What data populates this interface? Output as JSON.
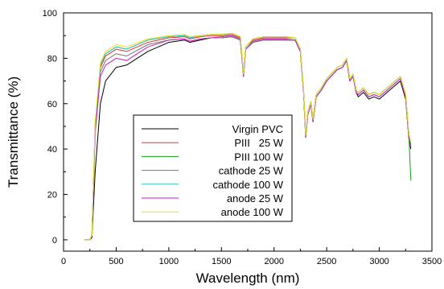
{
  "chart_data": {
    "type": "line",
    "title": "",
    "xlabel": "Wavelength (nm)",
    "ylabel": "Transmittance (%)",
    "xlim": [
      0,
      3500
    ],
    "ylim": [
      -5,
      100
    ],
    "xticks": [
      0,
      500,
      1000,
      1500,
      2000,
      2500,
      3000,
      3500
    ],
    "yticks": [
      0,
      20,
      40,
      60,
      80,
      100
    ],
    "grid": false,
    "legend_position": "center-left",
    "series": [
      {
        "name": "Virgin PVC",
        "color": "#000000",
        "x": [
          200,
          250,
          270,
          300,
          350,
          400,
          500,
          600,
          800,
          1000,
          1150,
          1200,
          1300,
          1400,
          1500,
          1600,
          1680,
          1710,
          1730,
          1800,
          1900,
          2000,
          2100,
          2200,
          2250,
          2280,
          2300,
          2320,
          2350,
          2370,
          2400,
          2450,
          2500,
          2600,
          2650,
          2690,
          2720,
          2750,
          2780,
          2800,
          2850,
          2900,
          2950,
          3000,
          3050,
          3100,
          3150,
          3200,
          3250,
          3280,
          3300
        ],
        "y": [
          0,
          0,
          1,
          30,
          60,
          70,
          76,
          77,
          83,
          87,
          88,
          87,
          88,
          89,
          89,
          89.5,
          88,
          72,
          84,
          87,
          88,
          88,
          88,
          88,
          83,
          65,
          45,
          55,
          60,
          52,
          63,
          66,
          70,
          75,
          76,
          79,
          70,
          72,
          65,
          63,
          65,
          62,
          63,
          62,
          64,
          66,
          68,
          70,
          62,
          45,
          40
        ]
      },
      {
        "name": "PIII   25 W",
        "color": "#e8312a",
        "x": [
          200,
          250,
          270,
          300,
          350,
          400,
          500,
          600,
          800,
          1000,
          1150,
          1200,
          1300,
          1400,
          1500,
          1600,
          1680,
          1710,
          1730,
          1800,
          1900,
          2000,
          2100,
          2200,
          2250,
          2280,
          2300,
          2320,
          2350,
          2370,
          2400,
          2450,
          2500,
          2600,
          2650,
          2690,
          2720,
          2750,
          2780,
          2800,
          2850,
          2900,
          2950,
          3000,
          3050,
          3100,
          3150,
          3200,
          3250,
          3280,
          3300
        ],
        "y": [
          0,
          0,
          2,
          50,
          76,
          81,
          84,
          83,
          87,
          89,
          89.5,
          88.5,
          89.5,
          90,
          90,
          90.5,
          89,
          73,
          85,
          88,
          89,
          89,
          89,
          89,
          84,
          66,
          46,
          56,
          61,
          53,
          64,
          67,
          71,
          76,
          77,
          80,
          71,
          73,
          66,
          65,
          67,
          64,
          65,
          64,
          66,
          68,
          70,
          72,
          64,
          47,
          42
        ]
      },
      {
        "name": "PIII 100 W",
        "color": "#11a511",
        "x": [
          200,
          250,
          270,
          300,
          350,
          400,
          500,
          600,
          800,
          1000,
          1150,
          1200,
          1300,
          1400,
          1500,
          1600,
          1680,
          1710,
          1730,
          1800,
          1900,
          2000,
          2100,
          2200,
          2250,
          2280,
          2300,
          2320,
          2350,
          2370,
          2400,
          2450,
          2500,
          2600,
          2650,
          2690,
          2720,
          2750,
          2780,
          2800,
          2850,
          2900,
          2950,
          3000,
          3050,
          3100,
          3150,
          3200,
          3250,
          3280,
          3300
        ],
        "y": [
          0,
          0,
          2,
          51,
          77,
          82,
          85,
          84,
          88,
          89.5,
          90,
          89,
          90,
          90.5,
          90.5,
          91,
          89.5,
          73,
          85,
          88.5,
          89.5,
          89.5,
          89.5,
          89,
          84,
          66,
          46,
          56,
          61,
          53,
          64,
          67,
          71,
          76,
          77,
          80,
          71,
          73,
          66,
          65,
          67,
          64,
          65,
          64,
          66,
          68,
          70,
          72,
          64,
          47,
          26
        ]
      },
      {
        "name": "cathode 25 W",
        "color": "#777777",
        "x": [
          200,
          250,
          270,
          300,
          350,
          400,
          500,
          600,
          800,
          1000,
          1150,
          1200,
          1300,
          1400,
          1500,
          1600,
          1680,
          1710,
          1730,
          1800,
          1900,
          2000,
          2100,
          2200,
          2250,
          2280,
          2300,
          2320,
          2350,
          2370,
          2400,
          2450,
          2500,
          2600,
          2650,
          2690,
          2720,
          2750,
          2780,
          2800,
          2850,
          2900,
          2950,
          3000,
          3050,
          3100,
          3150,
          3200,
          3250,
          3280,
          3300
        ],
        "y": [
          0,
          0,
          2,
          48,
          74,
          79,
          82,
          81,
          86,
          88,
          88.5,
          87.5,
          88.5,
          89,
          89,
          89.5,
          88,
          72,
          84,
          87,
          88,
          88,
          88,
          88,
          83,
          65,
          45,
          55,
          60,
          52,
          63,
          66,
          70,
          75,
          76,
          79,
          70,
          72,
          65,
          64,
          66,
          63,
          64,
          63,
          65,
          67,
          69,
          71,
          63,
          46,
          41
        ]
      },
      {
        "name": "cathode 100 W",
        "color": "#31c4c4",
        "x": [
          200,
          250,
          270,
          300,
          350,
          400,
          500,
          600,
          800,
          1000,
          1150,
          1200,
          1300,
          1400,
          1500,
          1600,
          1680,
          1710,
          1730,
          1800,
          1900,
          2000,
          2100,
          2200,
          2250,
          2280,
          2300,
          2320,
          2350,
          2370,
          2400,
          2450,
          2500,
          2600,
          2650,
          2690,
          2720,
          2750,
          2780,
          2800,
          2850,
          2900,
          2950,
          3000,
          3050,
          3100,
          3150,
          3200,
          3250,
          3280,
          3300
        ],
        "y": [
          0,
          0,
          2,
          51,
          77,
          82,
          85,
          84,
          88,
          89.5,
          90,
          89,
          90,
          90.5,
          90.5,
          91,
          89.5,
          73,
          85,
          88.5,
          89.5,
          89.5,
          89.5,
          89,
          84,
          66,
          46,
          56,
          61,
          53,
          64,
          67,
          71,
          76,
          77,
          80,
          71,
          73,
          66,
          65,
          67,
          64,
          65,
          64,
          66,
          68,
          70,
          72,
          64,
          47,
          42
        ]
      },
      {
        "name": "anode 25 W",
        "color": "#c020c0",
        "x": [
          200,
          250,
          270,
          300,
          350,
          400,
          500,
          600,
          800,
          1000,
          1150,
          1200,
          1300,
          1400,
          1500,
          1600,
          1680,
          1710,
          1730,
          1800,
          1900,
          2000,
          2100,
          2200,
          2250,
          2280,
          2300,
          2320,
          2350,
          2370,
          2400,
          2450,
          2500,
          2600,
          2650,
          2690,
          2720,
          2750,
          2780,
          2800,
          2850,
          2900,
          2950,
          3000,
          3050,
          3100,
          3150,
          3200,
          3250,
          3280,
          3300
        ],
        "y": [
          0,
          0,
          2,
          47,
          72,
          77,
          80,
          79,
          85,
          88,
          88.5,
          87.5,
          88.5,
          89,
          89.5,
          90,
          88.5,
          72,
          84,
          87.5,
          88.5,
          88.5,
          88.5,
          88,
          83,
          65,
          45,
          55,
          60,
          52,
          63,
          66,
          70,
          75,
          76,
          79,
          70,
          72,
          65,
          64,
          66,
          63,
          64,
          63,
          65,
          67,
          69,
          71,
          63,
          46,
          41
        ]
      },
      {
        "name": "anode 100 W",
        "color": "#e8e020",
        "x": [
          200,
          250,
          270,
          300,
          350,
          400,
          500,
          600,
          800,
          1000,
          1150,
          1200,
          1300,
          1400,
          1500,
          1600,
          1680,
          1710,
          1730,
          1800,
          1900,
          2000,
          2100,
          2200,
          2250,
          2280,
          2300,
          2320,
          2350,
          2370,
          2400,
          2450,
          2500,
          2600,
          2650,
          2690,
          2720,
          2750,
          2780,
          2800,
          2850,
          2900,
          2950,
          3000,
          3050,
          3100,
          3150,
          3200,
          3250,
          3280,
          3300
        ],
        "y": [
          0,
          0,
          2,
          52,
          78,
          83,
          86,
          85,
          88.5,
          90,
          90.5,
          89.5,
          90,
          90.5,
          90.5,
          91,
          89.5,
          73,
          85,
          88.5,
          89.5,
          89.5,
          89.5,
          89,
          84,
          66,
          46,
          56,
          61,
          53,
          64,
          67,
          71,
          76,
          77,
          80,
          71,
          73,
          66,
          65,
          67,
          64,
          65,
          64,
          66,
          68,
          70,
          72,
          64,
          47,
          43
        ]
      }
    ]
  }
}
